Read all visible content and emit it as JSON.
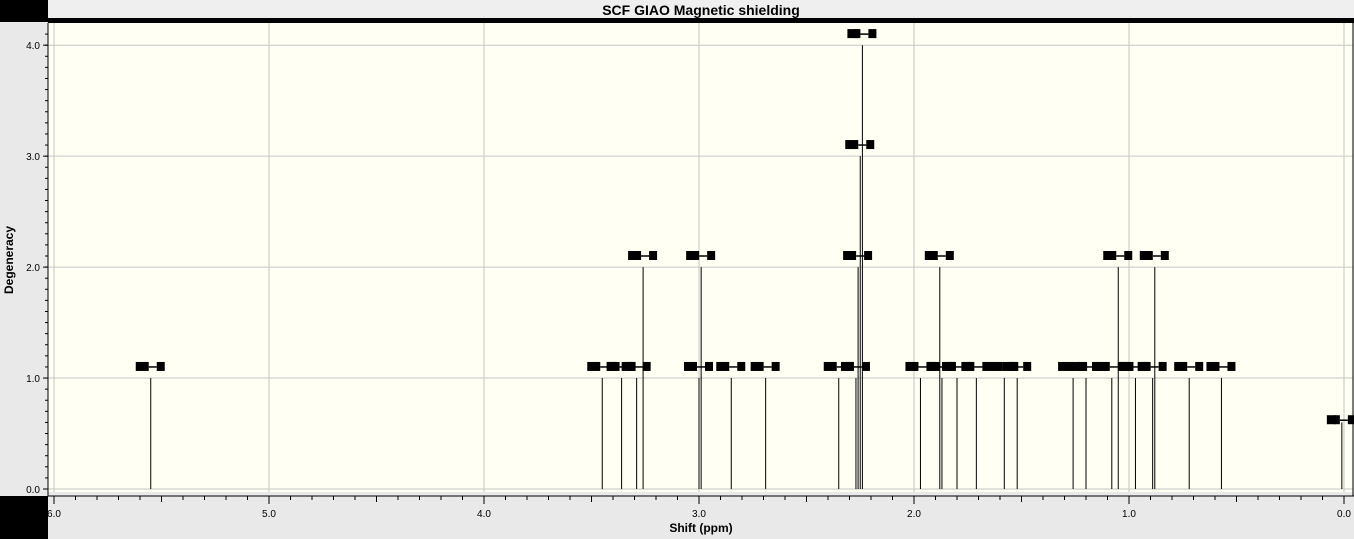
{
  "chart_data": {
    "type": "stem",
    "title": "SCF GIAO Magnetic shielding",
    "xlabel": "Shift (ppm)",
    "ylabel": "Degeneracy",
    "xlim": [
      6.0,
      0.0
    ],
    "ylim": [
      0.0,
      4.2
    ],
    "x_reversed": true,
    "grid": true,
    "x_ticks": [
      "6.0",
      "5.0",
      "4.0",
      "3.0",
      "2.0",
      "1.0",
      "0.0"
    ],
    "y_ticks": [
      "0.0",
      "1.0",
      "2.0",
      "3.0",
      "4.0"
    ],
    "peaks": [
      {
        "shift": 5.55,
        "degeneracy": 1
      },
      {
        "shift": 3.45,
        "degeneracy": 1
      },
      {
        "shift": 3.36,
        "degeneracy": 1
      },
      {
        "shift": 3.29,
        "degeneracy": 1
      },
      {
        "shift": 3.26,
        "degeneracy": 2
      },
      {
        "shift": 3.0,
        "degeneracy": 1
      },
      {
        "shift": 2.99,
        "degeneracy": 2
      },
      {
        "shift": 2.85,
        "degeneracy": 1
      },
      {
        "shift": 2.69,
        "degeneracy": 1
      },
      {
        "shift": 2.35,
        "degeneracy": 1
      },
      {
        "shift": 2.27,
        "degeneracy": 1
      },
      {
        "shift": 2.26,
        "degeneracy": 2
      },
      {
        "shift": 2.25,
        "degeneracy": 3
      },
      {
        "shift": 2.24,
        "degeneracy": 4
      },
      {
        "shift": 1.97,
        "degeneracy": 1
      },
      {
        "shift": 1.88,
        "degeneracy": 2
      },
      {
        "shift": 1.87,
        "degeneracy": 1
      },
      {
        "shift": 1.8,
        "degeneracy": 1
      },
      {
        "shift": 1.71,
        "degeneracy": 1
      },
      {
        "shift": 1.58,
        "degeneracy": 1
      },
      {
        "shift": 1.52,
        "degeneracy": 1
      },
      {
        "shift": 1.26,
        "degeneracy": 1
      },
      {
        "shift": 1.2,
        "degeneracy": 1
      },
      {
        "shift": 1.08,
        "degeneracy": 1
      },
      {
        "shift": 1.05,
        "degeneracy": 2
      },
      {
        "shift": 0.97,
        "degeneracy": 1
      },
      {
        "shift": 0.89,
        "degeneracy": 1
      },
      {
        "shift": 0.88,
        "degeneracy": 2
      },
      {
        "shift": 0.72,
        "degeneracy": 1
      },
      {
        "shift": 0.57,
        "degeneracy": 1
      },
      {
        "shift": 0.01,
        "degeneracy": 0.6
      }
    ]
  }
}
